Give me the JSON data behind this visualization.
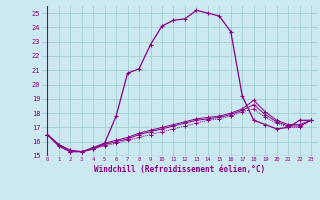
{
  "xlabel": "Windchill (Refroidissement éolien,°C)",
  "background_color": "#cce8f0",
  "grid_color": "#99cccc",
  "line_color": "#880088",
  "xlim": [
    -0.5,
    23.5
  ],
  "ylim": [
    15.0,
    25.5
  ],
  "yticks": [
    15,
    16,
    17,
    18,
    19,
    20,
    21,
    22,
    23,
    24,
    25
  ],
  "xticks": [
    0,
    1,
    2,
    3,
    4,
    5,
    6,
    7,
    8,
    9,
    10,
    11,
    12,
    13,
    14,
    15,
    16,
    17,
    18,
    19,
    20,
    21,
    22,
    23
  ],
  "series_solid": [
    [
      0,
      16.5
    ],
    [
      1,
      15.8
    ],
    [
      2,
      15.4
    ],
    [
      3,
      15.3
    ],
    [
      4,
      15.5
    ],
    [
      5,
      15.9
    ],
    [
      6,
      17.8
    ],
    [
      7,
      20.8
    ],
    [
      8,
      21.1
    ],
    [
      9,
      22.8
    ],
    [
      10,
      24.1
    ],
    [
      11,
      24.5
    ],
    [
      12,
      24.6
    ],
    [
      13,
      25.2
    ],
    [
      14,
      25.0
    ],
    [
      15,
      24.8
    ],
    [
      16,
      23.7
    ],
    [
      17,
      19.2
    ],
    [
      18,
      17.5
    ],
    [
      19,
      17.2
    ],
    [
      20,
      16.9
    ],
    [
      21,
      17.0
    ],
    [
      22,
      17.5
    ],
    [
      23,
      17.5
    ]
  ],
  "series_dotted": [
    [
      0,
      16.5
    ],
    [
      1,
      15.8
    ],
    [
      2,
      15.4
    ],
    [
      3,
      15.3
    ],
    [
      4,
      15.5
    ],
    [
      5,
      15.7
    ],
    [
      6,
      15.9
    ],
    [
      7,
      16.1
    ],
    [
      8,
      16.3
    ],
    [
      9,
      16.5
    ],
    [
      10,
      16.7
    ],
    [
      11,
      16.9
    ],
    [
      12,
      17.1
    ],
    [
      13,
      17.3
    ],
    [
      14,
      17.5
    ],
    [
      15,
      17.6
    ],
    [
      16,
      17.8
    ],
    [
      17,
      18.1
    ],
    [
      18,
      18.3
    ],
    [
      19,
      17.7
    ],
    [
      20,
      17.3
    ],
    [
      21,
      17.0
    ],
    [
      22,
      17.0
    ],
    [
      23,
      17.5
    ]
  ],
  "series_flat1": [
    [
      0,
      16.5
    ],
    [
      1,
      15.7
    ],
    [
      2,
      15.3
    ],
    [
      3,
      15.3
    ],
    [
      4,
      15.5
    ],
    [
      5,
      15.8
    ],
    [
      6,
      16.0
    ],
    [
      7,
      16.2
    ],
    [
      8,
      16.5
    ],
    [
      9,
      16.7
    ],
    [
      10,
      16.9
    ],
    [
      11,
      17.1
    ],
    [
      12,
      17.3
    ],
    [
      13,
      17.5
    ],
    [
      14,
      17.6
    ],
    [
      15,
      17.7
    ],
    [
      16,
      17.9
    ],
    [
      17,
      18.2
    ],
    [
      18,
      18.6
    ],
    [
      19,
      17.9
    ],
    [
      20,
      17.4
    ],
    [
      21,
      17.1
    ],
    [
      22,
      17.1
    ],
    [
      23,
      17.5
    ]
  ],
  "series_flat2": [
    [
      0,
      16.5
    ],
    [
      1,
      15.7
    ],
    [
      2,
      15.3
    ],
    [
      3,
      15.3
    ],
    [
      4,
      15.6
    ],
    [
      5,
      15.9
    ],
    [
      6,
      16.1
    ],
    [
      7,
      16.3
    ],
    [
      8,
      16.6
    ],
    [
      9,
      16.8
    ],
    [
      10,
      17.0
    ],
    [
      11,
      17.2
    ],
    [
      12,
      17.4
    ],
    [
      13,
      17.6
    ],
    [
      14,
      17.7
    ],
    [
      15,
      17.8
    ],
    [
      16,
      18.0
    ],
    [
      17,
      18.3
    ],
    [
      18,
      18.9
    ],
    [
      19,
      18.1
    ],
    [
      20,
      17.5
    ],
    [
      21,
      17.2
    ],
    [
      22,
      17.2
    ],
    [
      23,
      17.5
    ]
  ]
}
